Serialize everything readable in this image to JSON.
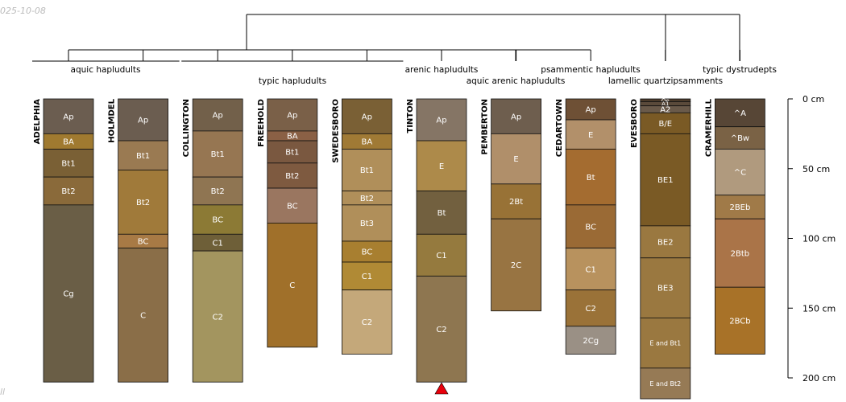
{
  "header": {
    "date_stamp": "025-10-08",
    "corner_mark": "ll"
  },
  "chart_data": {
    "type": "soil-profile-sketch",
    "depth_axis": {
      "unit": "cm",
      "ticks": [
        0,
        50,
        100,
        150,
        200
      ],
      "tick_labels": [
        "0 cm",
        "50 cm",
        "100 cm",
        "150 cm",
        "200 cm"
      ],
      "range": [
        0,
        200
      ]
    },
    "profiles": [
      {
        "name": "ADELPHIA",
        "horizons": [
          {
            "name": "Ap",
            "top": 0,
            "bottom": 25,
            "color": "#6b5d50"
          },
          {
            "name": "BA",
            "top": 25,
            "bottom": 36,
            "color": "#a07a30"
          },
          {
            "name": "Bt1",
            "top": 36,
            "bottom": 56,
            "color": "#7a6035"
          },
          {
            "name": "Bt2",
            "top": 56,
            "bottom": 76,
            "color": "#8a6a3a"
          },
          {
            "name": "Cg",
            "top": 76,
            "bottom": 203,
            "color": "#6a5e46"
          }
        ]
      },
      {
        "name": "HOLMDEL",
        "horizons": [
          {
            "name": "Ap",
            "top": 0,
            "bottom": 30,
            "color": "#6b5d50"
          },
          {
            "name": "Bt1",
            "top": 30,
            "bottom": 51,
            "color": "#9a7a52"
          },
          {
            "name": "Bt2",
            "top": 51,
            "bottom": 97,
            "color": "#a07a3a"
          },
          {
            "name": "BC",
            "top": 97,
            "bottom": 107,
            "color": "#a87a45"
          },
          {
            "name": "C",
            "top": 107,
            "bottom": 203,
            "color": "#8a6e48"
          }
        ]
      },
      {
        "name": "COLLINGTON",
        "horizons": [
          {
            "name": "Ap",
            "top": 0,
            "bottom": 23,
            "color": "#72604a"
          },
          {
            "name": "Bt1",
            "top": 23,
            "bottom": 56,
            "color": "#967652"
          },
          {
            "name": "Bt2",
            "top": 56,
            "bottom": 76,
            "color": "#8f7552"
          },
          {
            "name": "BC",
            "top": 76,
            "bottom": 97,
            "color": "#8c7a35"
          },
          {
            "name": "C1",
            "top": 97,
            "bottom": 109,
            "color": "#6e5f38"
          },
          {
            "name": "C2",
            "top": 109,
            "bottom": 203,
            "color": "#a3955f"
          }
        ]
      },
      {
        "name": "FREEHOLD",
        "horizons": [
          {
            "name": "Ap",
            "top": 0,
            "bottom": 23,
            "color": "#7a6048"
          },
          {
            "name": "BA",
            "top": 23,
            "bottom": 30,
            "color": "#8a6045"
          },
          {
            "name": "Bt1",
            "top": 30,
            "bottom": 46,
            "color": "#7a5840"
          },
          {
            "name": "Bt2",
            "top": 46,
            "bottom": 64,
            "color": "#7e5a40"
          },
          {
            "name": "BC",
            "top": 64,
            "bottom": 89,
            "color": "#9a7660"
          },
          {
            "name": "C",
            "top": 89,
            "bottom": 178,
            "color": "#a0702a"
          }
        ]
      },
      {
        "name": "SWEDESBORO",
        "horizons": [
          {
            "name": "Ap",
            "top": 0,
            "bottom": 25,
            "color": "#7a6035"
          },
          {
            "name": "BA",
            "top": 25,
            "bottom": 36,
            "color": "#a07a35"
          },
          {
            "name": "Bt1",
            "top": 36,
            "bottom": 66,
            "color": "#b08f5a"
          },
          {
            "name": "Bt2",
            "top": 66,
            "bottom": 76,
            "color": "#b08f5a"
          },
          {
            "name": "Bt3",
            "top": 76,
            "bottom": 102,
            "color": "#b08f5a"
          },
          {
            "name": "BC",
            "top": 102,
            "bottom": 117,
            "color": "#a87f30"
          },
          {
            "name": "C1",
            "top": 117,
            "bottom": 137,
            "color": "#b08a35"
          },
          {
            "name": "C2",
            "top": 137,
            "bottom": 183,
            "color": "#c4a87a"
          }
        ]
      },
      {
        "name": "TINTON",
        "horizons": [
          {
            "name": "Ap",
            "top": 0,
            "bottom": 30,
            "color": "#857565"
          },
          {
            "name": "E",
            "top": 30,
            "bottom": 66,
            "color": "#ad8a4a"
          },
          {
            "name": "Bt",
            "top": 66,
            "bottom": 97,
            "color": "#72603f"
          },
          {
            "name": "C1",
            "top": 97,
            "bottom": 127,
            "color": "#957a3e"
          },
          {
            "name": "C2",
            "top": 127,
            "bottom": 203,
            "color": "#8e7650"
          }
        ]
      },
      {
        "name": "PEMBERTON",
        "horizons": [
          {
            "name": "Ap",
            "top": 0,
            "bottom": 25,
            "color": "#6e5e4e"
          },
          {
            "name": "E",
            "top": 25,
            "bottom": 61,
            "color": "#b08f6a"
          },
          {
            "name": "2Bt",
            "top": 61,
            "bottom": 86,
            "color": "#987236"
          },
          {
            "name": "2C",
            "top": 86,
            "bottom": 152,
            "color": "#987442"
          }
        ]
      },
      {
        "name": "CEDARTOWN",
        "horizons": [
          {
            "name": "Ap",
            "top": 0,
            "bottom": 15,
            "color": "#6e5035"
          },
          {
            "name": "E",
            "top": 15,
            "bottom": 36,
            "color": "#b2906a"
          },
          {
            "name": "Bt",
            "top": 36,
            "bottom": 76,
            "color": "#a46c30"
          },
          {
            "name": "BC",
            "top": 76,
            "bottom": 107,
            "color": "#9a6a35"
          },
          {
            "name": "C1",
            "top": 107,
            "bottom": 137,
            "color": "#b8925e"
          },
          {
            "name": "C2",
            "top": 137,
            "bottom": 163,
            "color": "#9a7238"
          },
          {
            "name": "2Cg",
            "top": 163,
            "bottom": 183,
            "color": "#9a9085"
          }
        ]
      },
      {
        "name": "EVESBORO",
        "horizons": [
          {
            "name": "Oe",
            "top": 0,
            "bottom": 2,
            "color": "#4a3a2a"
          },
          {
            "name": "A1",
            "top": 2,
            "bottom": 5,
            "color": "#5a4a3a"
          },
          {
            "name": "A2",
            "top": 5,
            "bottom": 10,
            "color": "#6a5a4a"
          },
          {
            "name": "B/E",
            "top": 10,
            "bottom": 25,
            "color": "#7a5a25"
          },
          {
            "name": "BE1",
            "top": 25,
            "bottom": 91,
            "color": "#7a5a25"
          },
          {
            "name": "BE2",
            "top": 91,
            "bottom": 114,
            "color": "#9a7840"
          },
          {
            "name": "BE3",
            "top": 114,
            "bottom": 157,
            "color": "#9a7840"
          },
          {
            "name": "E and Bt1",
            "top": 157,
            "bottom": 193,
            "color": "#9a7840"
          },
          {
            "name": "E and Bt2",
            "top": 193,
            "bottom": 215,
            "color": "#967a55"
          }
        ]
      },
      {
        "name": "CRAMERHILL",
        "horizons": [
          {
            "name": "^A",
            "top": 0,
            "bottom": 20,
            "color": "#574636"
          },
          {
            "name": "^Bw",
            "top": 20,
            "bottom": 36,
            "color": "#7a6245"
          },
          {
            "name": "^C",
            "top": 36,
            "bottom": 69,
            "color": "#b09a7e"
          },
          {
            "name": "2BEb",
            "top": 69,
            "bottom": 86,
            "color": "#a07a48"
          },
          {
            "name": "2Btb",
            "top": 86,
            "bottom": 135,
            "color": "#aa7448"
          },
          {
            "name": "2BCb",
            "top": 135,
            "bottom": 183,
            "color": "#a87228"
          }
        ]
      }
    ],
    "dendrogram": {
      "groups": [
        {
          "label": "aquic hapludults",
          "members": [
            0,
            1
          ]
        },
        {
          "label": "typic hapludults",
          "members": [
            2,
            3,
            4
          ]
        },
        {
          "label": "arenic hapludults",
          "members": [
            5
          ]
        },
        {
          "label": "aquic arenic hapludults",
          "members": [
            6
          ]
        },
        {
          "label": "psammentic hapludults",
          "members": [
            7
          ]
        },
        {
          "label": "lamellic quartzipsamments",
          "members": [
            8
          ]
        },
        {
          "label": "typic dystrudepts",
          "members": [
            9
          ]
        }
      ]
    },
    "marker": {
      "profile": "TINTON",
      "shape": "triangle",
      "color": "#e8000b"
    }
  }
}
